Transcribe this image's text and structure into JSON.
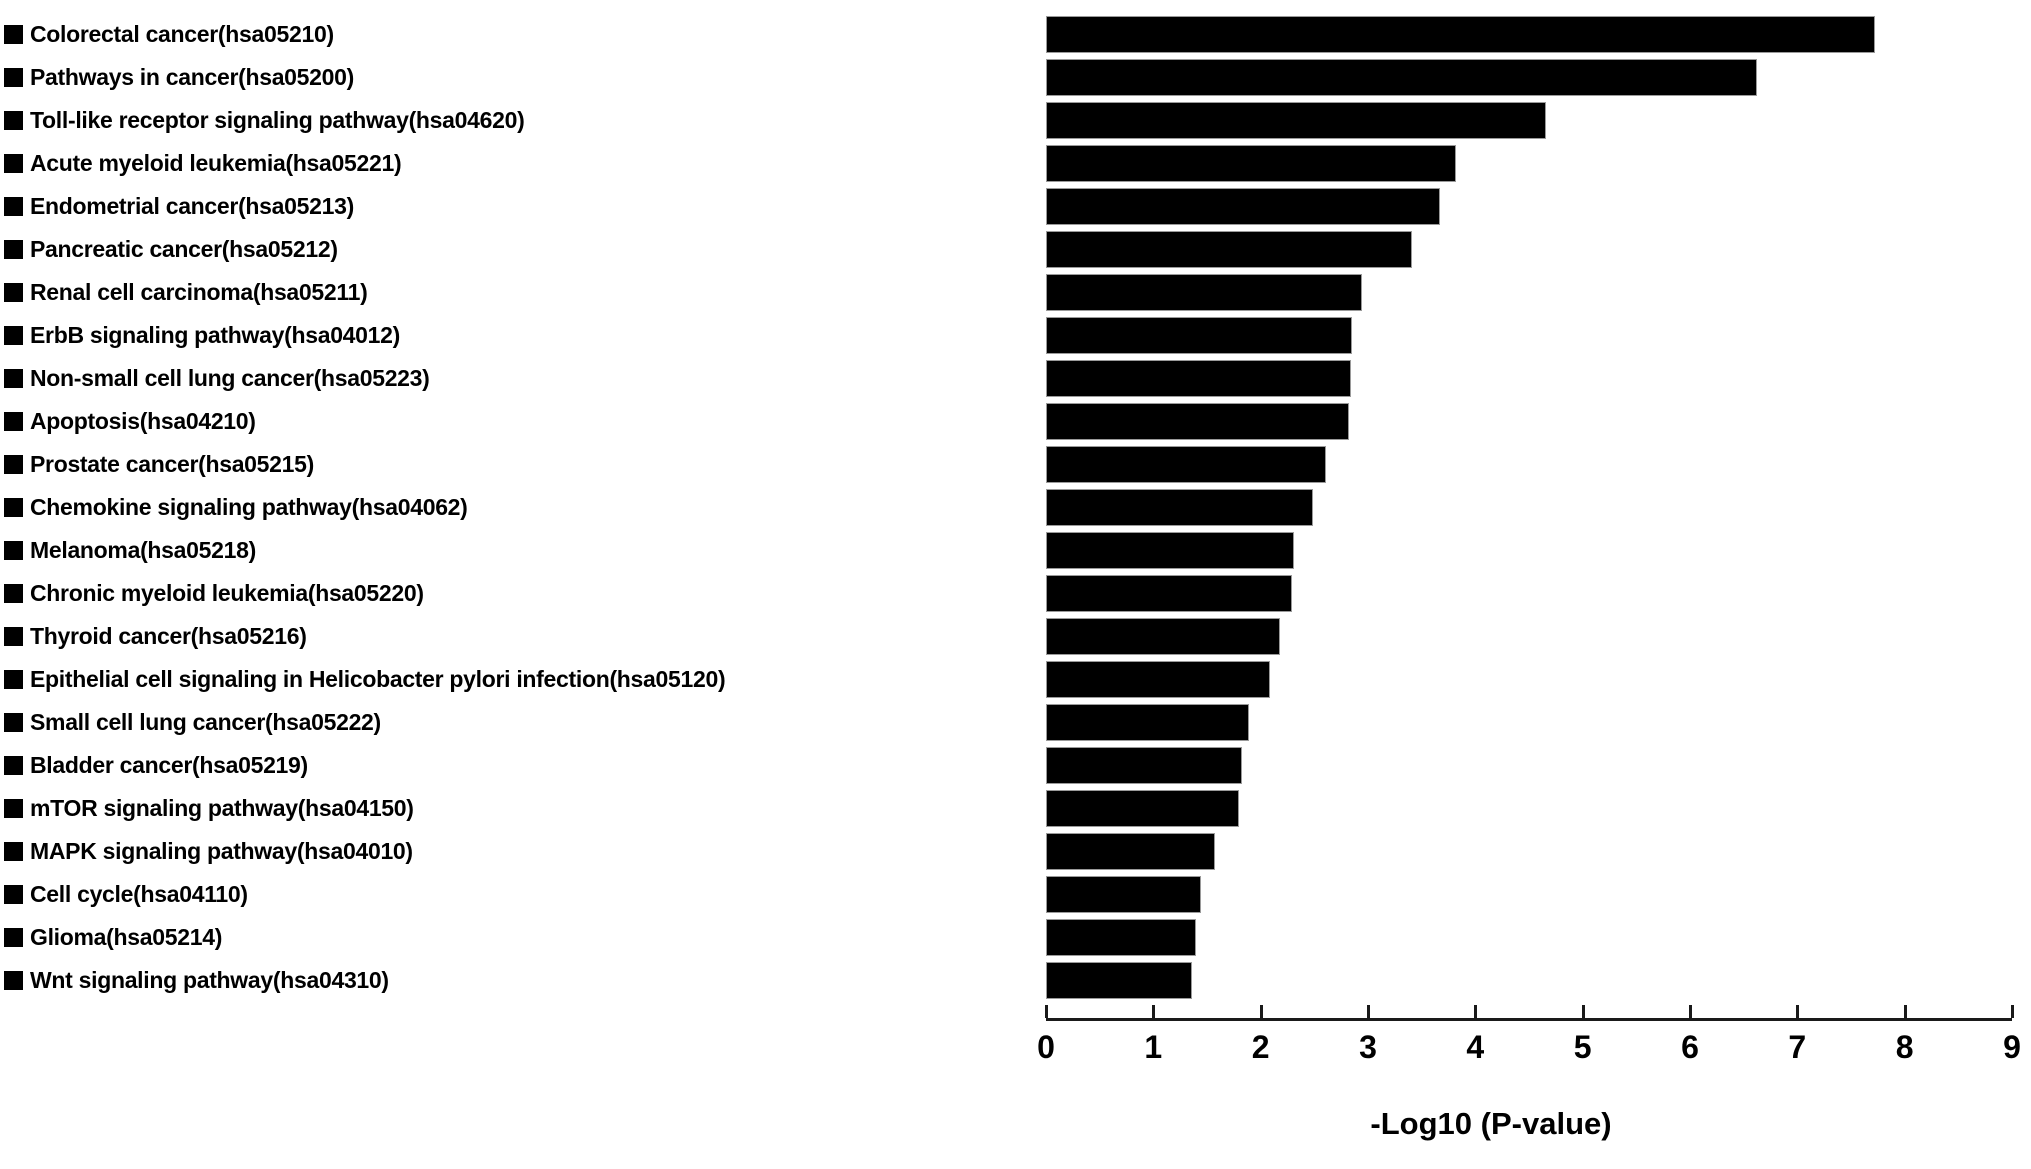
{
  "chart_data": {
    "type": "bar",
    "orientation": "horizontal",
    "title": "",
    "xlabel": "-Log10 (P-value)",
    "ylabel": "",
    "xlim": [
      0,
      9
    ],
    "x_ticks": [
      0,
      1,
      2,
      3,
      4,
      5,
      6,
      7,
      8,
      9
    ],
    "grid": false,
    "legend_position": "none",
    "bar_color": "#000000",
    "bar_border_color": "#9a9a9a",
    "category_marker": "filled-square",
    "category_marker_color": "#000000",
    "background_color": "#ffffff",
    "axis_color": "#1a1a1a",
    "categories": [
      "Colorectal cancer(hsa05210)",
      "Pathways in cancer(hsa05200)",
      "Toll-like receptor signaling pathway(hsa04620)",
      "Acute myeloid leukemia(hsa05221)",
      "Endometrial cancer(hsa05213)",
      "Pancreatic cancer(hsa05212)",
      "Renal cell carcinoma(hsa05211)",
      "ErbB signaling pathway(hsa04012)",
      "Non-small cell lung cancer(hsa05223)",
      "Apoptosis(hsa04210)",
      "Prostate cancer(hsa05215)",
      "Chemokine signaling pathway(hsa04062)",
      "Melanoma(hsa05218)",
      "Chronic myeloid leukemia(hsa05220)",
      "Thyroid cancer(hsa05216)",
      "Epithelial cell signaling in Helicobacter pylori infection(hsa05120)",
      "Small cell lung cancer(hsa05222)",
      "Bladder cancer(hsa05219)",
      "mTOR signaling pathway(hsa04150)",
      "MAPK signaling pathway(hsa04010)",
      "Cell cycle(hsa04110)",
      "Glioma(hsa05214)",
      "Wnt signaling pathway(hsa04310)"
    ],
    "values": [
      7.72,
      6.62,
      4.66,
      3.82,
      3.67,
      3.41,
      2.94,
      2.85,
      2.84,
      2.82,
      2.61,
      2.49,
      2.31,
      2.29,
      2.18,
      2.09,
      1.89,
      1.83,
      1.8,
      1.57,
      1.44,
      1.4,
      1.36
    ]
  }
}
